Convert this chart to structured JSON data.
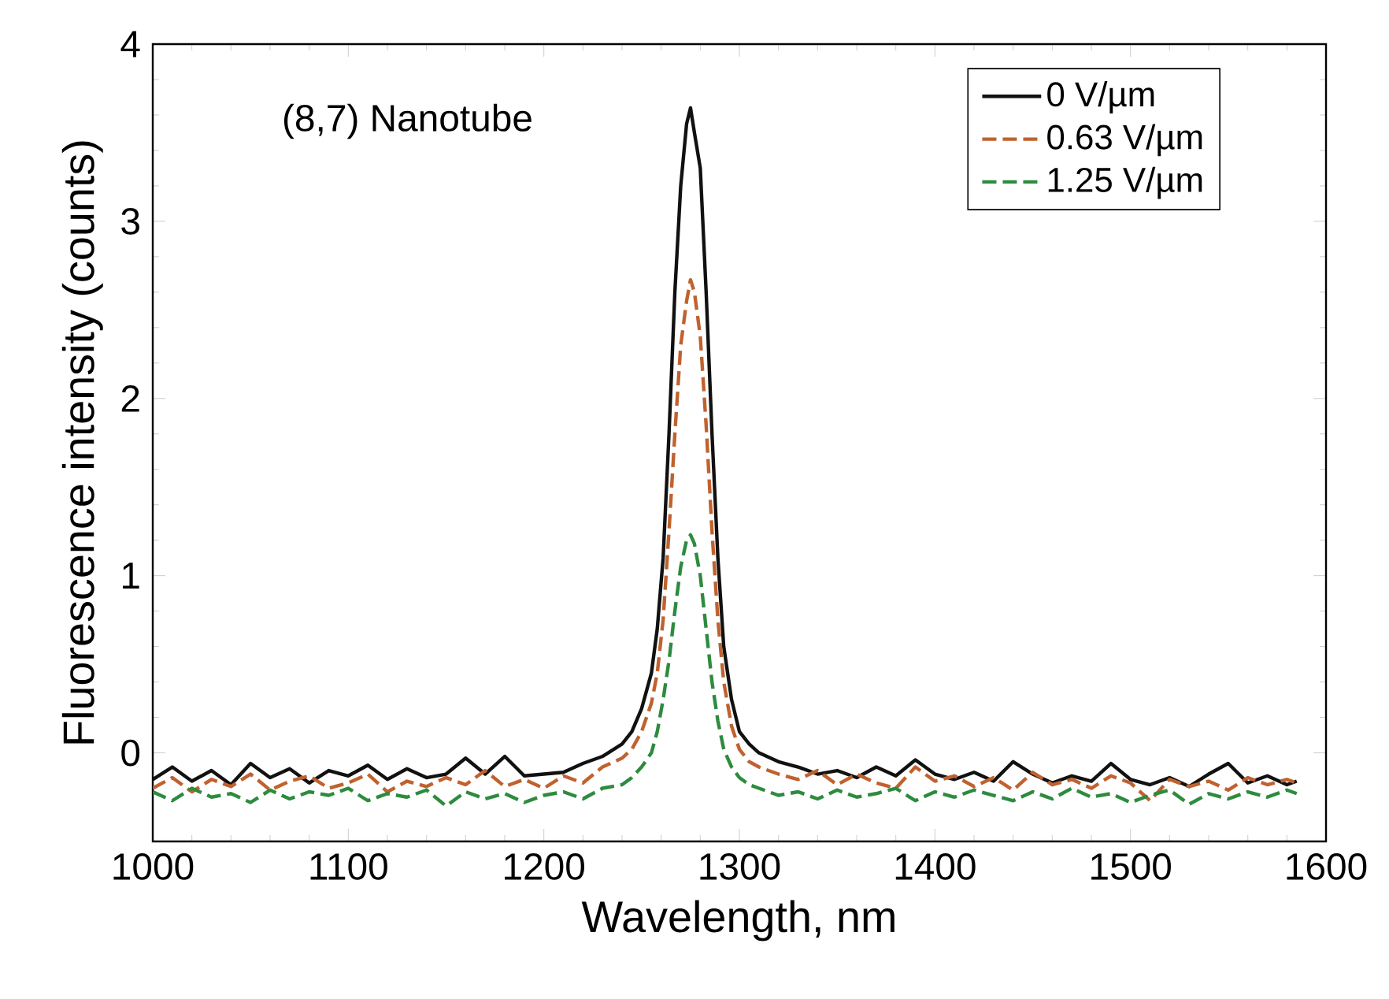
{
  "chart_data": {
    "type": "line",
    "xlabel": "Wavelength, nm",
    "ylabel": "Fluorescence intensity (counts)",
    "xlim": [
      1000,
      1600
    ],
    "xticks": [
      1000,
      1100,
      1200,
      1300,
      1400,
      1500,
      1600
    ],
    "ylim": [
      -0.5,
      4
    ],
    "yticks": [
      0,
      1,
      2,
      3,
      4
    ],
    "legend": "top right",
    "grid": false,
    "annotations": [
      "(8,7) Nanotube"
    ],
    "x": [
      1000,
      1010,
      1020,
      1030,
      1040,
      1050,
      1060,
      1070,
      1080,
      1090,
      1100,
      1110,
      1120,
      1130,
      1140,
      1150,
      1160,
      1170,
      1180,
      1190,
      1200,
      1210,
      1220,
      1230,
      1240,
      1245,
      1250,
      1255,
      1258,
      1261,
      1264,
      1267,
      1270,
      1273,
      1275,
      1277,
      1280,
      1283,
      1286,
      1289,
      1292,
      1296,
      1300,
      1305,
      1310,
      1320,
      1330,
      1340,
      1350,
      1360,
      1370,
      1380,
      1390,
      1400,
      1410,
      1420,
      1430,
      1440,
      1450,
      1460,
      1470,
      1480,
      1490,
      1500,
      1510,
      1520,
      1530,
      1540,
      1550,
      1560,
      1570,
      1580,
      1585
    ],
    "series": [
      {
        "name": "0 V/µm",
        "color": "#111111",
        "line_style": "solid",
        "values": [
          -0.15,
          -0.08,
          -0.16,
          -0.1,
          -0.18,
          -0.06,
          -0.14,
          -0.09,
          -0.17,
          -0.1,
          -0.13,
          -0.07,
          -0.15,
          -0.09,
          -0.14,
          -0.12,
          -0.03,
          -0.12,
          -0.02,
          -0.13,
          -0.12,
          -0.11,
          -0.06,
          -0.02,
          0.05,
          0.12,
          0.25,
          0.45,
          0.7,
          1.1,
          1.8,
          2.6,
          3.2,
          3.55,
          3.64,
          3.5,
          3.3,
          2.6,
          1.8,
          1.1,
          0.6,
          0.3,
          0.12,
          0.05,
          0.0,
          -0.05,
          -0.08,
          -0.12,
          -0.1,
          -0.14,
          -0.08,
          -0.13,
          -0.04,
          -0.12,
          -0.15,
          -0.11,
          -0.16,
          -0.05,
          -0.12,
          -0.17,
          -0.13,
          -0.16,
          -0.06,
          -0.15,
          -0.18,
          -0.14,
          -0.19,
          -0.12,
          -0.06,
          -0.17,
          -0.13,
          -0.18,
          -0.16
        ]
      },
      {
        "name": "0.63 V/µm",
        "color": "#c0622f",
        "line_style": "dashed",
        "values": [
          -0.2,
          -0.14,
          -0.22,
          -0.15,
          -0.19,
          -0.12,
          -0.21,
          -0.16,
          -0.13,
          -0.2,
          -0.17,
          -0.12,
          -0.22,
          -0.16,
          -0.19,
          -0.14,
          -0.18,
          -0.1,
          -0.19,
          -0.15,
          -0.2,
          -0.13,
          -0.17,
          -0.08,
          -0.03,
          0.02,
          0.12,
          0.28,
          0.45,
          0.75,
          1.25,
          1.8,
          2.3,
          2.55,
          2.67,
          2.6,
          2.35,
          1.85,
          1.25,
          0.75,
          0.4,
          0.15,
          0.02,
          -0.05,
          -0.08,
          -0.12,
          -0.15,
          -0.1,
          -0.18,
          -0.12,
          -0.17,
          -0.2,
          -0.08,
          -0.16,
          -0.13,
          -0.19,
          -0.14,
          -0.21,
          -0.11,
          -0.18,
          -0.15,
          -0.2,
          -0.13,
          -0.17,
          -0.27,
          -0.15,
          -0.19,
          -0.16,
          -0.21,
          -0.14,
          -0.18,
          -0.15,
          -0.17
        ]
      },
      {
        "name": "1.25 V/µm",
        "color": "#2e8b3e",
        "line_style": "dashed",
        "values": [
          -0.22,
          -0.27,
          -0.2,
          -0.25,
          -0.23,
          -0.28,
          -0.21,
          -0.26,
          -0.22,
          -0.24,
          -0.2,
          -0.27,
          -0.23,
          -0.25,
          -0.21,
          -0.3,
          -0.22,
          -0.26,
          -0.23,
          -0.28,
          -0.24,
          -0.22,
          -0.26,
          -0.2,
          -0.18,
          -0.14,
          -0.08,
          0.0,
          0.12,
          0.3,
          0.52,
          0.8,
          1.05,
          1.2,
          1.23,
          1.18,
          1.0,
          0.7,
          0.4,
          0.18,
          0.02,
          -0.08,
          -0.14,
          -0.18,
          -0.2,
          -0.24,
          -0.22,
          -0.26,
          -0.21,
          -0.25,
          -0.23,
          -0.2,
          -0.27,
          -0.22,
          -0.25,
          -0.21,
          -0.24,
          -0.27,
          -0.22,
          -0.26,
          -0.2,
          -0.25,
          -0.23,
          -0.28,
          -0.24,
          -0.21,
          -0.29,
          -0.23,
          -0.26,
          -0.22,
          -0.25,
          -0.21,
          -0.23
        ]
      }
    ]
  }
}
